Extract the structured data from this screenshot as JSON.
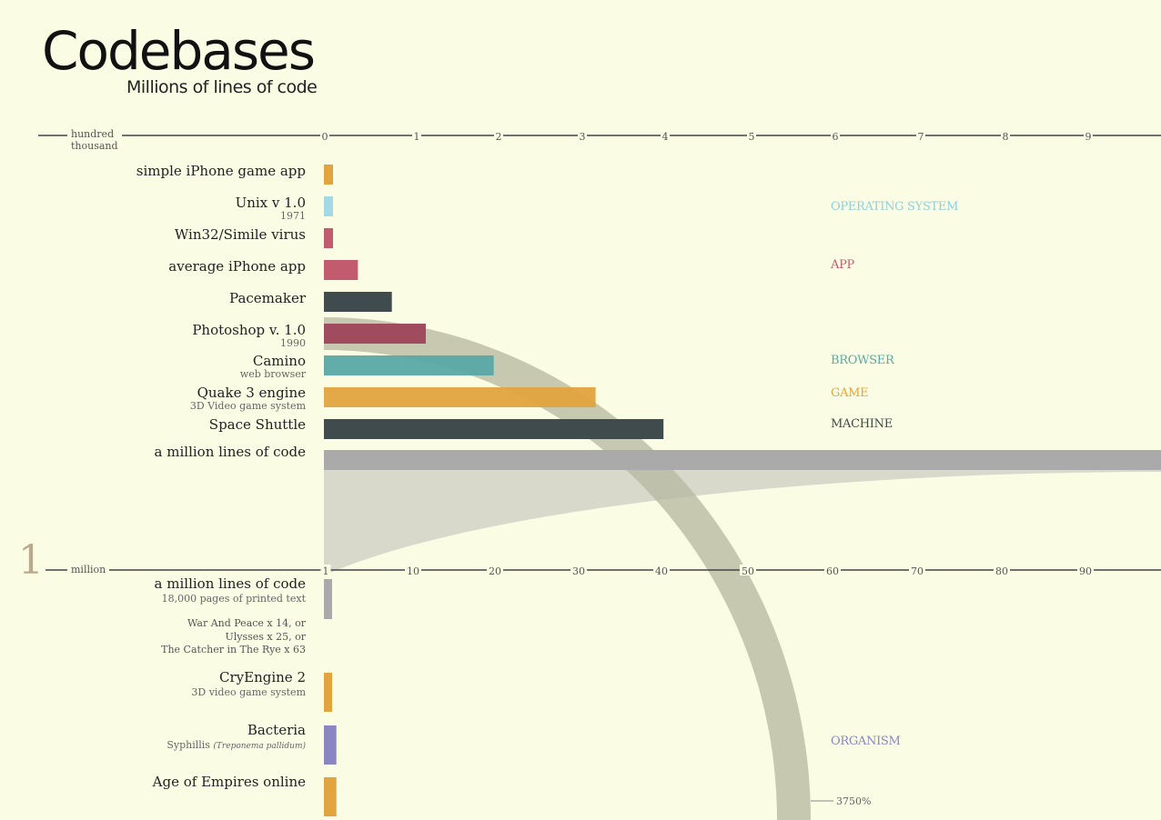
{
  "title": "Codebases",
  "subtitle": "Millions of lines of code",
  "colors": {
    "background": "#fafde3",
    "game": "#e2a43f",
    "operating_system": "#a2d9e4",
    "app": "#c35b6e",
    "browser": "#5aa9a6",
    "machine": "#3f4b4c",
    "organism": "#8a86c2",
    "reference": "#aaaaaa",
    "photoshop": "#a04c5e"
  },
  "chart_data": [
    {
      "type": "bar",
      "scale_label": [
        "hundred",
        "thousand"
      ],
      "xlim": [
        0,
        10
      ],
      "ticks": [
        0,
        1,
        2,
        3,
        4,
        5,
        6,
        7,
        8,
        9
      ],
      "rows": [
        {
          "name": "simple iPhone game app",
          "sub": "",
          "value": 0.1,
          "color": "#e2a43f"
        },
        {
          "name": "Unix v 1.0",
          "sub": "1971",
          "value": 0.1,
          "color": "#a2d9e4"
        },
        {
          "name": "Win32/Simile virus",
          "sub": "",
          "value": 0.1,
          "color": "#c35b6e"
        },
        {
          "name": "average iPhone app",
          "sub": "",
          "value": 0.4,
          "color": "#c35b6e"
        },
        {
          "name": "Pacemaker",
          "sub": "",
          "value": 0.8,
          "color": "#3f4b4c"
        },
        {
          "name": "Photoshop v. 1.0",
          "sub": "1990",
          "value": 1.2,
          "color": "#a04c5e"
        },
        {
          "name": "Camino",
          "sub": "web browser",
          "value": 2.0,
          "color": "#5aa9a6"
        },
        {
          "name": "Quake 3 engine",
          "sub": "3D Video game system",
          "value": 3.2,
          "color": "#e2a43f"
        },
        {
          "name": "Space Shuttle",
          "sub": "",
          "value": 4.0,
          "color": "#3f4b4c"
        },
        {
          "name": "a million lines of code",
          "sub": "",
          "value": 10,
          "color": "#aaaaaa"
        }
      ],
      "categories_legend": [
        {
          "name": "OPERATING SYSTEM",
          "color": "#a2d9e4"
        },
        {
          "name": "APP",
          "color": "#c35b6e"
        },
        {
          "name": "BROWSER",
          "color": "#5aa9a6"
        },
        {
          "name": "GAME",
          "color": "#e2a43f"
        },
        {
          "name": "MACHINE",
          "color": "#3f4b4c"
        }
      ]
    },
    {
      "type": "bar",
      "scale_big": "1",
      "scale_label": "million",
      "xlim": [
        0,
        100
      ],
      "ticks": [
        1,
        10,
        20,
        30,
        40,
        50,
        60,
        70,
        80,
        90
      ],
      "rows": [
        {
          "name": "a million lines of code",
          "sub": "18,000 pages of printed text",
          "value": 1,
          "color": "#aaaaaa"
        },
        {
          "name": "CryEngine 2",
          "sub": "3D video game system",
          "value": 1,
          "color": "#e2a43f"
        },
        {
          "name": "Bacteria",
          "sub": "Syphillis",
          "sub_italic": "(Treponema pallidum)",
          "value": 1.3,
          "color": "#8a86c2"
        },
        {
          "name": "Age of Empires online",
          "sub": "",
          "value": 1.3,
          "color": "#e2a43f"
        }
      ],
      "note": [
        "War And Peace x 14, or",
        "Ulysses x 25, or",
        "The Catcher in The Rye x 63"
      ],
      "categories_legend": [
        {
          "name": "ORGANISM",
          "color": "#8a86c2"
        }
      ]
    }
  ],
  "zoom_annotation": "3750%"
}
